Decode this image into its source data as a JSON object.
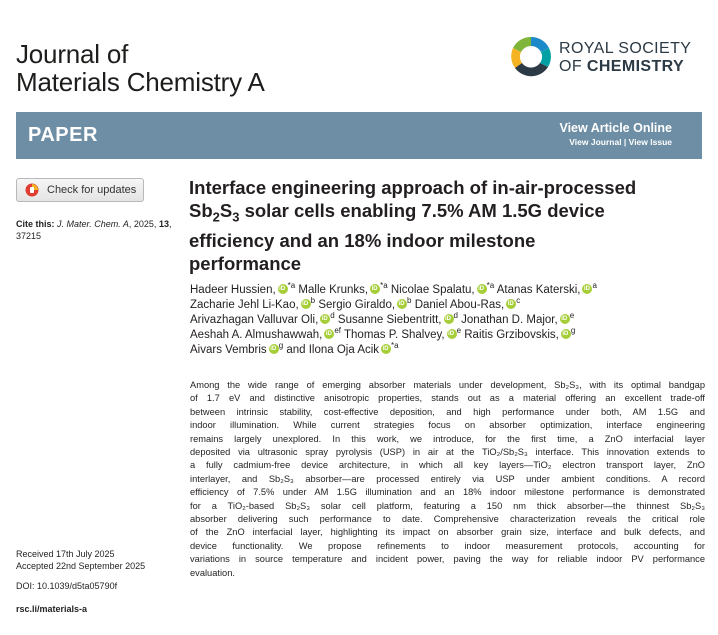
{
  "journal": {
    "line1": "Journal of",
    "line2": "Materials Chemistry A"
  },
  "publisher": {
    "line1": "ROYAL SOCIETY",
    "of": "OF ",
    "chemistry": "CHEMISTRY",
    "logo_colors": [
      "#00a0a4",
      "#1c8ac9",
      "#7fb539",
      "#f5b323",
      "#2c3a45"
    ]
  },
  "banner": {
    "label": "PAPER",
    "view_article_online": "View Article Online",
    "view_journal": "View Journal",
    "separator": " | ",
    "view_issue": "View Issue",
    "color": "#6e8ea5"
  },
  "check_updates": {
    "label": "Check for updates",
    "icon": "crossmark-icon"
  },
  "citation": {
    "label": "Cite this:",
    "journal": "J. Mater. Chem. A",
    "year": ", 2025,",
    "volume": "13",
    "pages": ",",
    "pages_line2": "37215"
  },
  "title": {
    "line1": "Interface engineering approach of in-air-processed",
    "line2_pre": "Sb",
    "line2_sub1": "2",
    "line2_mid": "S",
    "line2_sub2": "3",
    "line2_post": " solar cells enabling 7.5% AM 1.5G device",
    "line3": "efficiency and an 18% indoor milestone",
    "line4": "performance"
  },
  "authors": [
    {
      "name": "Hadeer Hussien,",
      "aff": "*a"
    },
    {
      "name": "Malle Krunks,",
      "aff": "*a"
    },
    {
      "name": "Nicolae Spalatu,",
      "aff": "*a"
    },
    {
      "name": "Atanas Katerski,",
      "aff": "a"
    },
    {
      "name": "Zacharie Jehl Li-Kao,",
      "aff": "b"
    },
    {
      "name": "Sergio Giraldo,",
      "aff": "b"
    },
    {
      "name": "Daniel Abou-Ras,",
      "aff": "c"
    },
    {
      "name": "Arivazhagan Valluvar Oli,",
      "aff": "d"
    },
    {
      "name": "Susanne Siebentritt,",
      "aff": "d"
    },
    {
      "name": "Jonathan D. Major,",
      "aff": "e"
    },
    {
      "name": "Aeshah A. Almushawwah,",
      "aff": "ef"
    },
    {
      "name": "Thomas P. Shalvey,",
      "aff": "e"
    },
    {
      "name": "Raitis Grzibovskis,",
      "aff": "g"
    },
    {
      "name": "Aivars Vembris",
      "aff": "g"
    },
    {
      "name": "and Ilona Oja Acik",
      "aff": "*a"
    }
  ],
  "abstract": {
    "lines": [
      "Among the wide range of emerging absorber materials under development, Sb₂S₃, with its optimal bandgap",
      "of 1.7 eV and distinctive anisotropic properties, stands out as a material offering an excellent trade-off",
      "between intrinsic stability, cost-effective deposition, and high performance under both, AM 1.5G and",
      "indoor illumination. While current strategies focus on absorber optimization, interface engineering",
      "remains largely unexplored. In this work, we introduce, for the first time, a ZnO interfacial layer",
      "deposited via ultrasonic spray pyrolysis (USP) in air at the TiO₂/Sb₂S₃ interface. This innovation extends to",
      "a fully cadmium-free device architecture, in which all key layers—TiO₂ electron transport layer, ZnO",
      "interlayer, and Sb₂S₃ absorber—are processed entirely via USP under ambient conditions. A record",
      "efficiency of 7.5% under AM 1.5G illumination and an 18% indoor milestone performance is demonstrated",
      "for a TiO₂-based Sb₂S₃ solar cell platform, featuring a 150 nm thick absorber—the thinnest Sb₂S₃",
      "absorber delivering such performance to date. Comprehensive characterization reveals the critical role",
      "of the ZnO interfacial layer, highlighting its impact on absorber grain size, interface and bulk defects, and",
      "device functionality. We propose refinements to indoor measurement protocols, accounting for",
      "variations in source temperature and incident power, paving the way for reliable indoor PV performance",
      "evaluation."
    ]
  },
  "dates": {
    "received": "Received 17th July 2025",
    "accepted": "Accepted 22nd September 2025"
  },
  "doi": "DOI: 10.1039/d5ta05790f",
  "link": "rsc.li/materials-a"
}
